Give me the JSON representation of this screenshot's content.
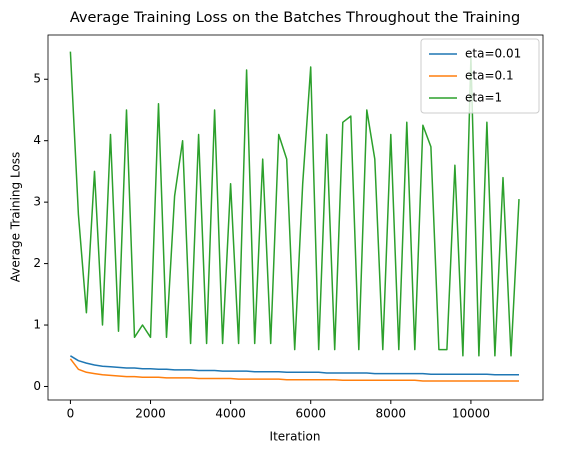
{
  "chart_data": {
    "type": "line",
    "title": "Average Training Loss on the Batches Throughout the Training",
    "xlabel": "Iteration",
    "ylabel": "Average Training Loss",
    "x": [
      0,
      200,
      400,
      600,
      800,
      1000,
      1200,
      1400,
      1600,
      1800,
      2000,
      2200,
      2400,
      2600,
      2800,
      3000,
      3200,
      3400,
      3600,
      3800,
      4000,
      4200,
      4400,
      4600,
      4800,
      5000,
      5200,
      5400,
      5600,
      5800,
      6000,
      6200,
      6400,
      6600,
      6800,
      7000,
      7200,
      7400,
      7600,
      7800,
      8000,
      8200,
      8400,
      8600,
      8800,
      9000,
      9200,
      9400,
      9600,
      9800,
      10000,
      10200,
      10400,
      10600,
      10800,
      11000,
      11200
    ],
    "series": [
      {
        "name": "eta=0.01",
        "color": "#1f77b4",
        "values": [
          0.5,
          0.42,
          0.38,
          0.35,
          0.33,
          0.32,
          0.31,
          0.3,
          0.3,
          0.29,
          0.29,
          0.28,
          0.28,
          0.27,
          0.27,
          0.27,
          0.26,
          0.26,
          0.26,
          0.25,
          0.25,
          0.25,
          0.25,
          0.24,
          0.24,
          0.24,
          0.24,
          0.23,
          0.23,
          0.23,
          0.23,
          0.23,
          0.22,
          0.22,
          0.22,
          0.22,
          0.22,
          0.22,
          0.21,
          0.21,
          0.21,
          0.21,
          0.21,
          0.21,
          0.21,
          0.2,
          0.2,
          0.2,
          0.2,
          0.2,
          0.2,
          0.2,
          0.2,
          0.19,
          0.19,
          0.19,
          0.19
        ]
      },
      {
        "name": "eta=0.1",
        "color": "#ff7f0e",
        "values": [
          0.45,
          0.28,
          0.23,
          0.21,
          0.19,
          0.18,
          0.17,
          0.16,
          0.16,
          0.15,
          0.15,
          0.15,
          0.14,
          0.14,
          0.14,
          0.14,
          0.13,
          0.13,
          0.13,
          0.13,
          0.13,
          0.12,
          0.12,
          0.12,
          0.12,
          0.12,
          0.12,
          0.11,
          0.11,
          0.11,
          0.11,
          0.11,
          0.11,
          0.11,
          0.1,
          0.1,
          0.1,
          0.1,
          0.1,
          0.1,
          0.1,
          0.1,
          0.1,
          0.1,
          0.09,
          0.09,
          0.09,
          0.09,
          0.09,
          0.09,
          0.09,
          0.09,
          0.09,
          0.09,
          0.09,
          0.09,
          0.09
        ]
      },
      {
        "name": "eta=1",
        "color": "#2ca02c",
        "values": [
          5.45,
          2.8,
          1.2,
          3.5,
          1.0,
          4.1,
          0.9,
          4.5,
          0.8,
          1.0,
          0.8,
          4.6,
          0.8,
          3.1,
          4.0,
          0.7,
          4.1,
          0.7,
          4.5,
          0.7,
          3.3,
          0.7,
          5.15,
          0.7,
          3.7,
          0.7,
          4.1,
          3.7,
          0.6,
          3.3,
          5.2,
          0.6,
          4.1,
          0.6,
          4.3,
          4.4,
          0.6,
          4.5,
          3.7,
          0.6,
          4.1,
          0.6,
          4.3,
          0.6,
          4.25,
          3.9,
          0.6,
          0.6,
          3.6,
          0.5,
          5.35,
          0.5,
          4.3,
          0.5,
          3.4,
          0.5,
          3.05
        ]
      }
    ],
    "xlim": [
      -560,
      11800
    ],
    "ylim": [
      -0.22,
      5.72
    ],
    "xticks": [
      0,
      2000,
      4000,
      6000,
      8000,
      10000
    ],
    "yticks": [
      0,
      1,
      2,
      3,
      4,
      5
    ],
    "legend": "upper right"
  }
}
